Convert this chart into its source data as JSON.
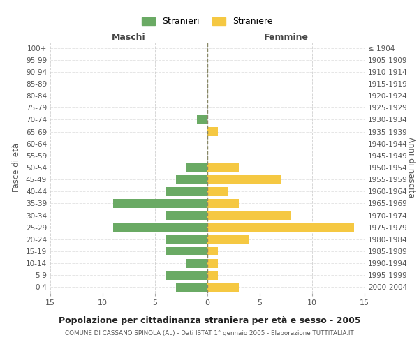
{
  "age_groups": [
    "100+",
    "95-99",
    "90-94",
    "85-89",
    "80-84",
    "75-79",
    "70-74",
    "65-69",
    "60-64",
    "55-59",
    "50-54",
    "45-49",
    "40-44",
    "35-39",
    "30-34",
    "25-29",
    "20-24",
    "15-19",
    "10-14",
    "5-9",
    "0-4"
  ],
  "birth_years": [
    "≤ 1904",
    "1905-1909",
    "1910-1914",
    "1915-1919",
    "1920-1924",
    "1925-1929",
    "1930-1934",
    "1935-1939",
    "1940-1944",
    "1945-1949",
    "1950-1954",
    "1955-1959",
    "1960-1964",
    "1965-1969",
    "1970-1974",
    "1975-1979",
    "1980-1984",
    "1985-1989",
    "1990-1994",
    "1995-1999",
    "2000-2004"
  ],
  "maschi": [
    0,
    0,
    0,
    0,
    0,
    0,
    1,
    0,
    0,
    0,
    2,
    3,
    4,
    9,
    4,
    9,
    4,
    4,
    2,
    4,
    3
  ],
  "femmine": [
    0,
    0,
    0,
    0,
    0,
    0,
    0,
    1,
    0,
    0,
    3,
    7,
    2,
    3,
    8,
    14,
    4,
    1,
    1,
    1,
    3
  ],
  "color_maschi": "#6aaa64",
  "color_femmine": "#f5c842",
  "title": "Popolazione per cittadinanza straniera per età e sesso - 2005",
  "subtitle": "COMUNE DI CASSANO SPINOLA (AL) - Dati ISTAT 1° gennaio 2005 - Elaborazione TUTTITALIA.IT",
  "xlabel_left": "Maschi",
  "xlabel_right": "Femmine",
  "ylabel_left": "Fasce di età",
  "ylabel_right": "Anni di nascita",
  "xlim": 15,
  "legend_maschi": "Stranieri",
  "legend_femmine": "Straniere",
  "background_color": "#ffffff",
  "grid_color": "#cccccc"
}
